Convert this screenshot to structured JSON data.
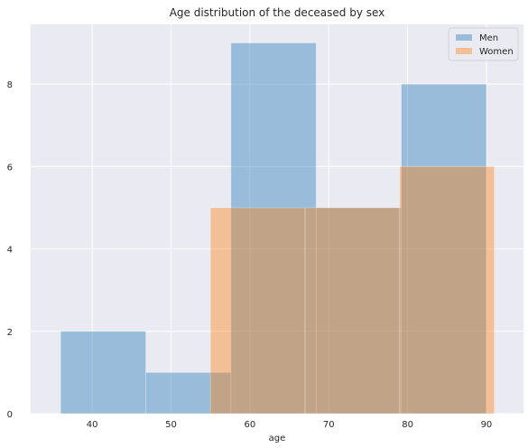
{
  "chart_data": {
    "type": "bar",
    "title": "Age distribution of the deceased by sex",
    "xlabel": "age",
    "ylabel": "",
    "xlim": [
      32.2,
      94.7
    ],
    "ylim": [
      0,
      9.45
    ],
    "xticks": [
      40,
      50,
      60,
      70,
      80,
      90
    ],
    "yticks": [
      0,
      2,
      4,
      6,
      8
    ],
    "grid": true,
    "legend_position": "top-right",
    "colors": {
      "background": "#eaeaf2",
      "grid": "#ffffff",
      "men": "#1f77b4",
      "women": "#ff7f0e"
    },
    "series": [
      {
        "name": "Men",
        "color": "#1f77b4",
        "bins": [
          {
            "x0": 36,
            "x1": 46.8,
            "count": 2
          },
          {
            "x0": 46.8,
            "x1": 57.6,
            "count": 1
          },
          {
            "x0": 57.6,
            "x1": 68.4,
            "count": 9
          },
          {
            "x0": 68.4,
            "x1": 79.2,
            "count": 5
          },
          {
            "x0": 79.2,
            "x1": 90,
            "count": 8
          }
        ]
      },
      {
        "name": "Women",
        "color": "#ff7f0e",
        "bins": [
          {
            "x0": 55,
            "x1": 67,
            "count": 5
          },
          {
            "x0": 67,
            "x1": 79,
            "count": 5
          },
          {
            "x0": 79,
            "x1": 91,
            "count": 6
          }
        ]
      }
    ]
  }
}
